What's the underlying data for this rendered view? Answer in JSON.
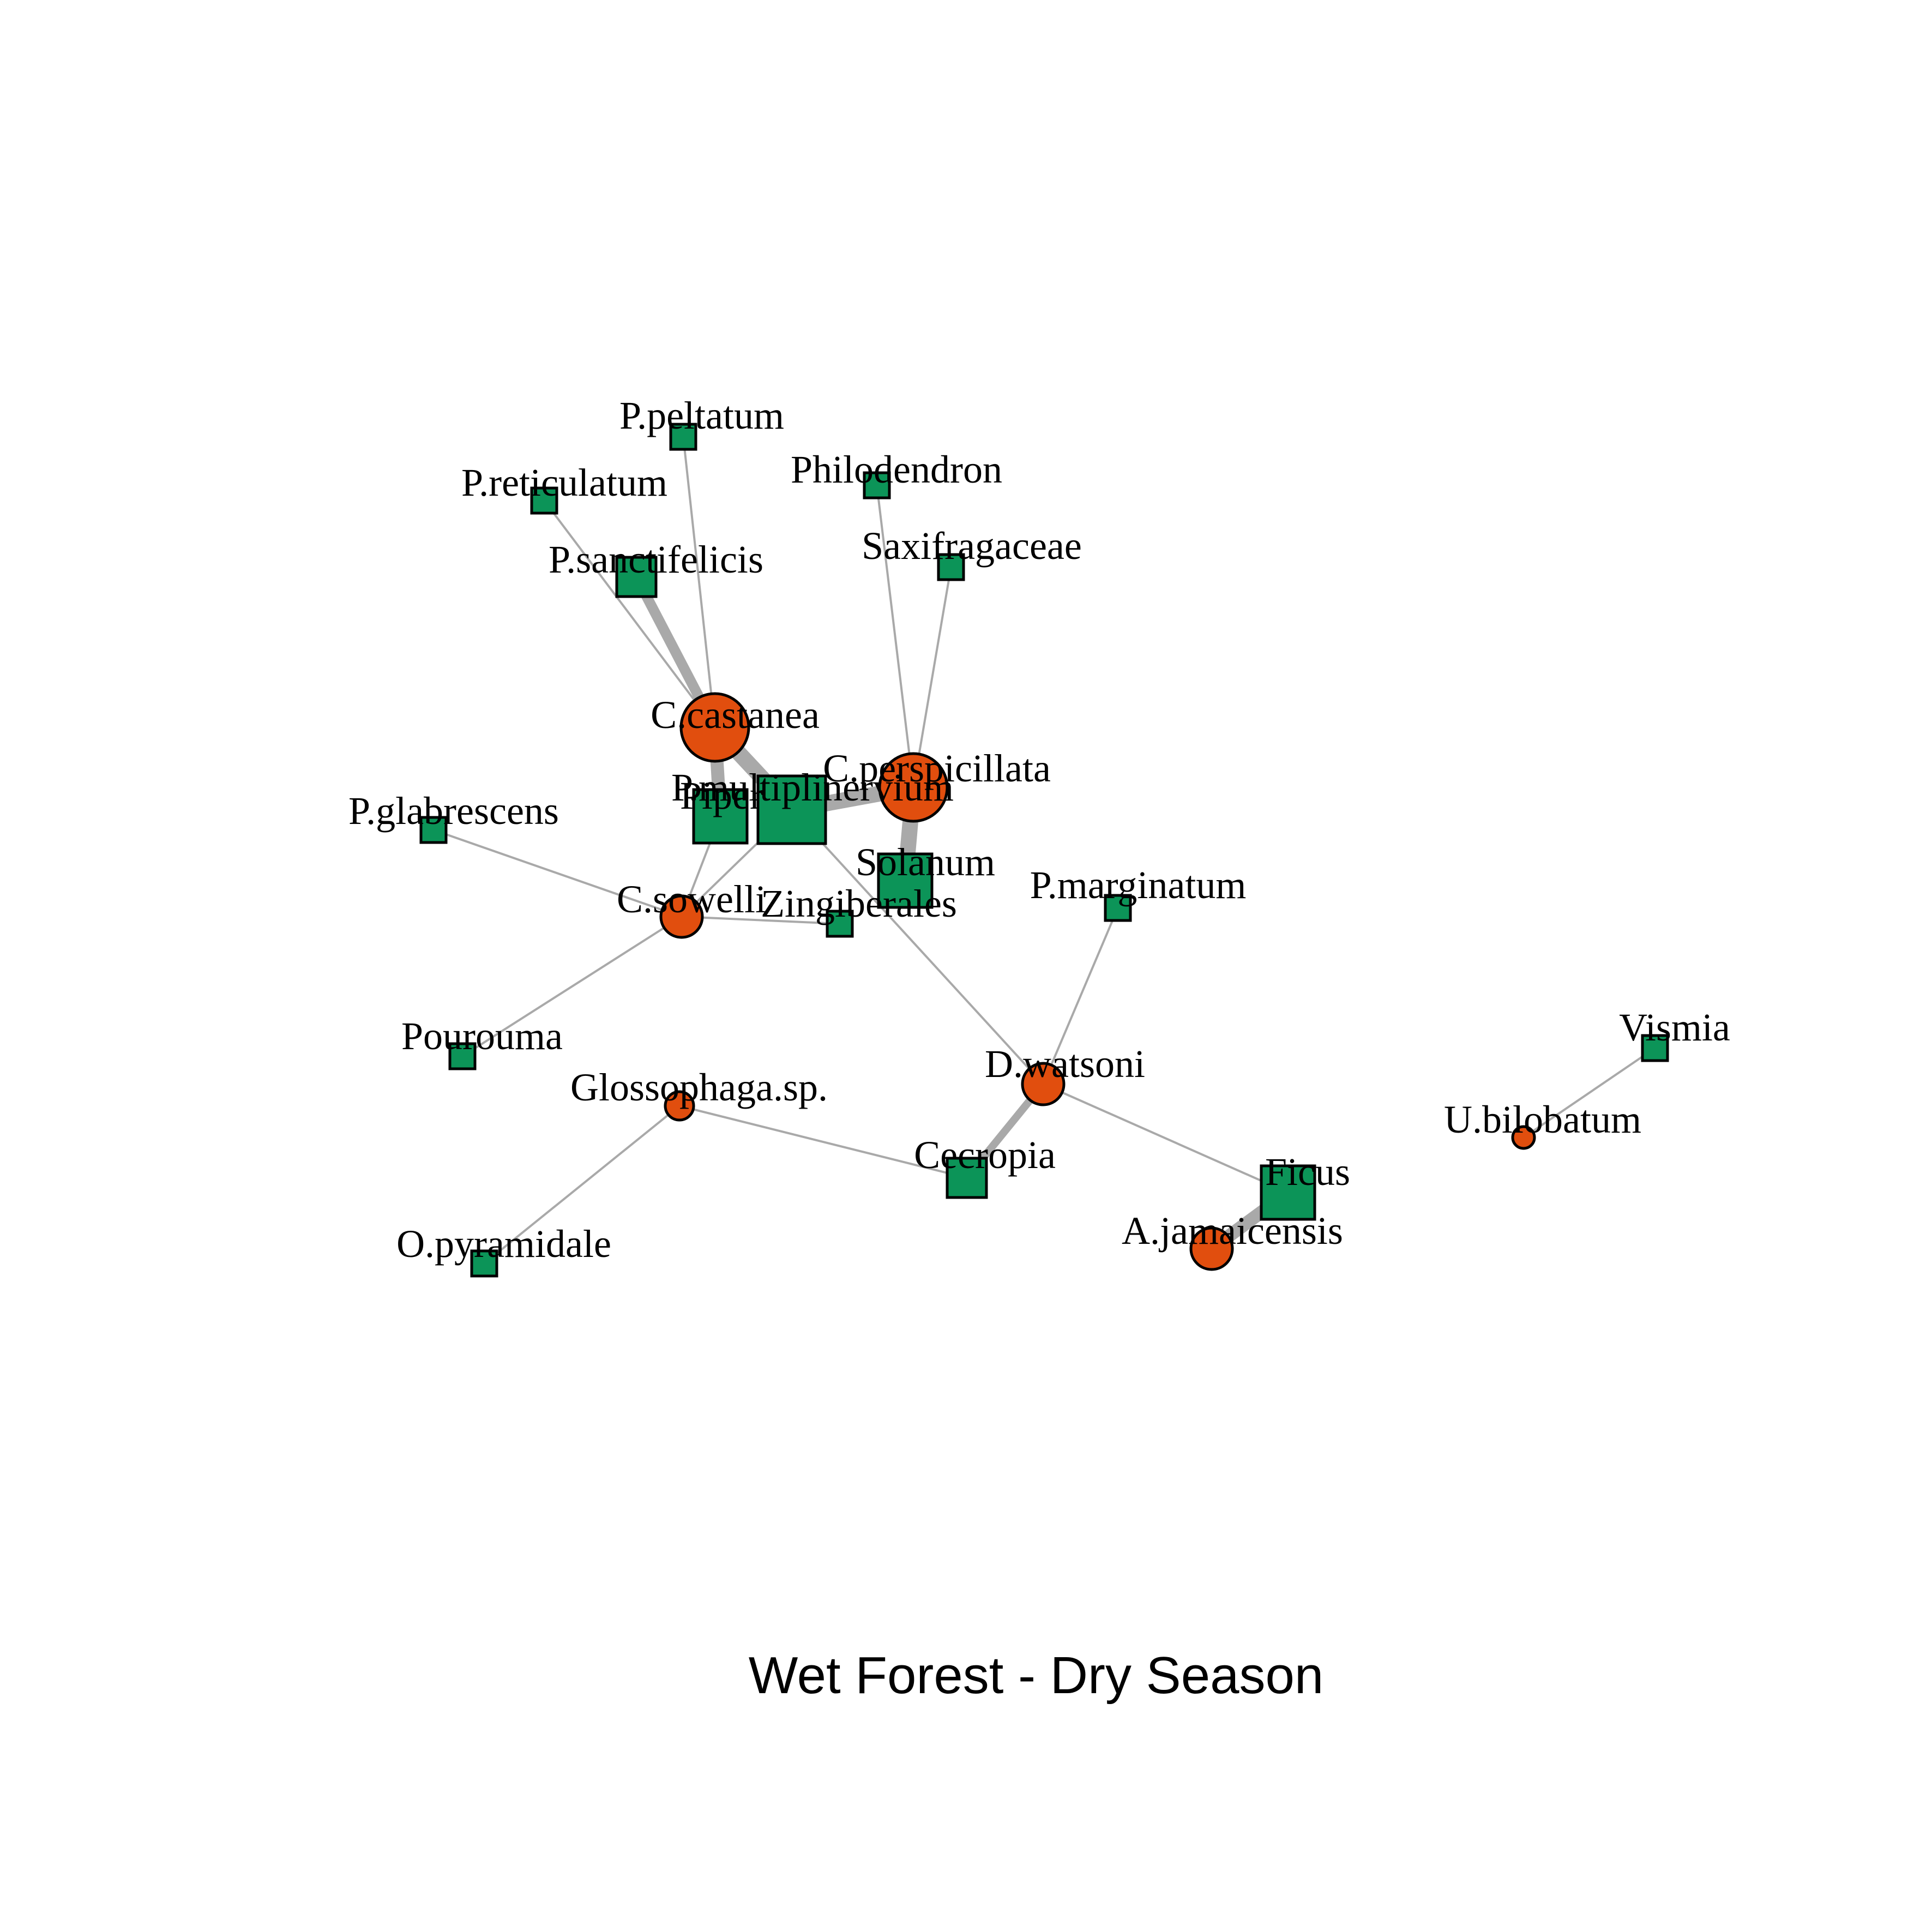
{
  "title": "Wet Forest - Dry Season",
  "colors": {
    "bat": "#e14e0e",
    "plant": "#0c9458",
    "edge": "#a9a9a9"
  },
  "node_types": {
    "bat": "circle",
    "plant": "square"
  },
  "nodes": [
    {
      "id": "c_castanea",
      "label": "C.castanea",
      "type": "bat",
      "size": 4
    },
    {
      "id": "c_perspicillata",
      "label": "C.perspicillata",
      "type": "bat",
      "size": 4
    },
    {
      "id": "c_sowelli",
      "label": "C.sowelli",
      "type": "bat",
      "size": 2
    },
    {
      "id": "d_watsoni",
      "label": "D.watsoni",
      "type": "bat",
      "size": 2
    },
    {
      "id": "glossophaga",
      "label": "Glossophaga.sp.",
      "type": "bat",
      "size": 1
    },
    {
      "id": "a_jamaicensis",
      "label": "A.jamaicensis",
      "type": "bat",
      "size": 2
    },
    {
      "id": "u_bilobatum",
      "label": "U.bilobatum",
      "type": "bat",
      "size": 0.5
    },
    {
      "id": "p_peltatum",
      "label": "P.peltatum",
      "type": "plant",
      "size": 1
    },
    {
      "id": "p_reticulatum",
      "label": "P.reticulatum",
      "type": "plant",
      "size": 1
    },
    {
      "id": "p_sanctifelicis",
      "label": "P.sanctifelicis",
      "type": "plant",
      "size": 2
    },
    {
      "id": "philodendron",
      "label": "Philodendron",
      "type": "plant",
      "size": 1
    },
    {
      "id": "saxifragaceae",
      "label": "Saxifragaceae",
      "type": "plant",
      "size": 1
    },
    {
      "id": "piper",
      "label": "Piper",
      "type": "plant",
      "size": 3
    },
    {
      "id": "p_multiplinervium",
      "label": "P.multiplinervium",
      "type": "plant",
      "size": 4
    },
    {
      "id": "solanum",
      "label": "Solanum",
      "type": "plant",
      "size": 3
    },
    {
      "id": "p_glabrescens",
      "label": "P.glabrescens",
      "type": "plant",
      "size": 1
    },
    {
      "id": "zingiberales",
      "label": "Zingiberales",
      "type": "plant",
      "size": 1
    },
    {
      "id": "p_marginatum",
      "label": "P.marginatum",
      "type": "plant",
      "size": 1
    },
    {
      "id": "pourouma",
      "label": "Pourouma",
      "type": "plant",
      "size": 1
    },
    {
      "id": "cecropia",
      "label": "Cecropia",
      "type": "plant",
      "size": 2
    },
    {
      "id": "ficus",
      "label": "Ficus",
      "type": "plant",
      "size": 3
    },
    {
      "id": "o_pyramidale",
      "label": "O.pyramidale",
      "type": "plant",
      "size": 1
    },
    {
      "id": "vismia",
      "label": "Vismia",
      "type": "plant",
      "size": 1
    }
  ],
  "edges": [
    {
      "source": "c_castanea",
      "target": "p_peltatum",
      "weight": 1
    },
    {
      "source": "c_castanea",
      "target": "p_reticulatum",
      "weight": 1
    },
    {
      "source": "c_castanea",
      "target": "p_sanctifelicis",
      "weight": 4
    },
    {
      "source": "c_castanea",
      "target": "piper",
      "weight": 5
    },
    {
      "source": "c_castanea",
      "target": "p_multiplinervium",
      "weight": 6
    },
    {
      "source": "c_perspicillata",
      "target": "philodendron",
      "weight": 1
    },
    {
      "source": "c_perspicillata",
      "target": "saxifragaceae",
      "weight": 1
    },
    {
      "source": "c_perspicillata",
      "target": "p_multiplinervium",
      "weight": 6
    },
    {
      "source": "c_perspicillata",
      "target": "solanum",
      "weight": 6
    },
    {
      "source": "c_sowelli",
      "target": "piper",
      "weight": 1
    },
    {
      "source": "c_sowelli",
      "target": "p_multiplinervium",
      "weight": 1
    },
    {
      "source": "c_sowelli",
      "target": "p_glabrescens",
      "weight": 1
    },
    {
      "source": "c_sowelli",
      "target": "zingiberales",
      "weight": 1
    },
    {
      "source": "c_sowelli",
      "target": "pourouma",
      "weight": 1
    },
    {
      "source": "d_watsoni",
      "target": "p_multiplinervium",
      "weight": 1
    },
    {
      "source": "d_watsoni",
      "target": "p_marginatum",
      "weight": 1
    },
    {
      "source": "d_watsoni",
      "target": "cecropia",
      "weight": 3
    },
    {
      "source": "d_watsoni",
      "target": "ficus",
      "weight": 1
    },
    {
      "source": "glossophaga",
      "target": "cecropia",
      "weight": 1
    },
    {
      "source": "glossophaga",
      "target": "o_pyramidale",
      "weight": 1
    },
    {
      "source": "a_jamaicensis",
      "target": "ficus",
      "weight": 5
    },
    {
      "source": "u_bilobatum",
      "target": "vismia",
      "weight": 1
    }
  ]
}
